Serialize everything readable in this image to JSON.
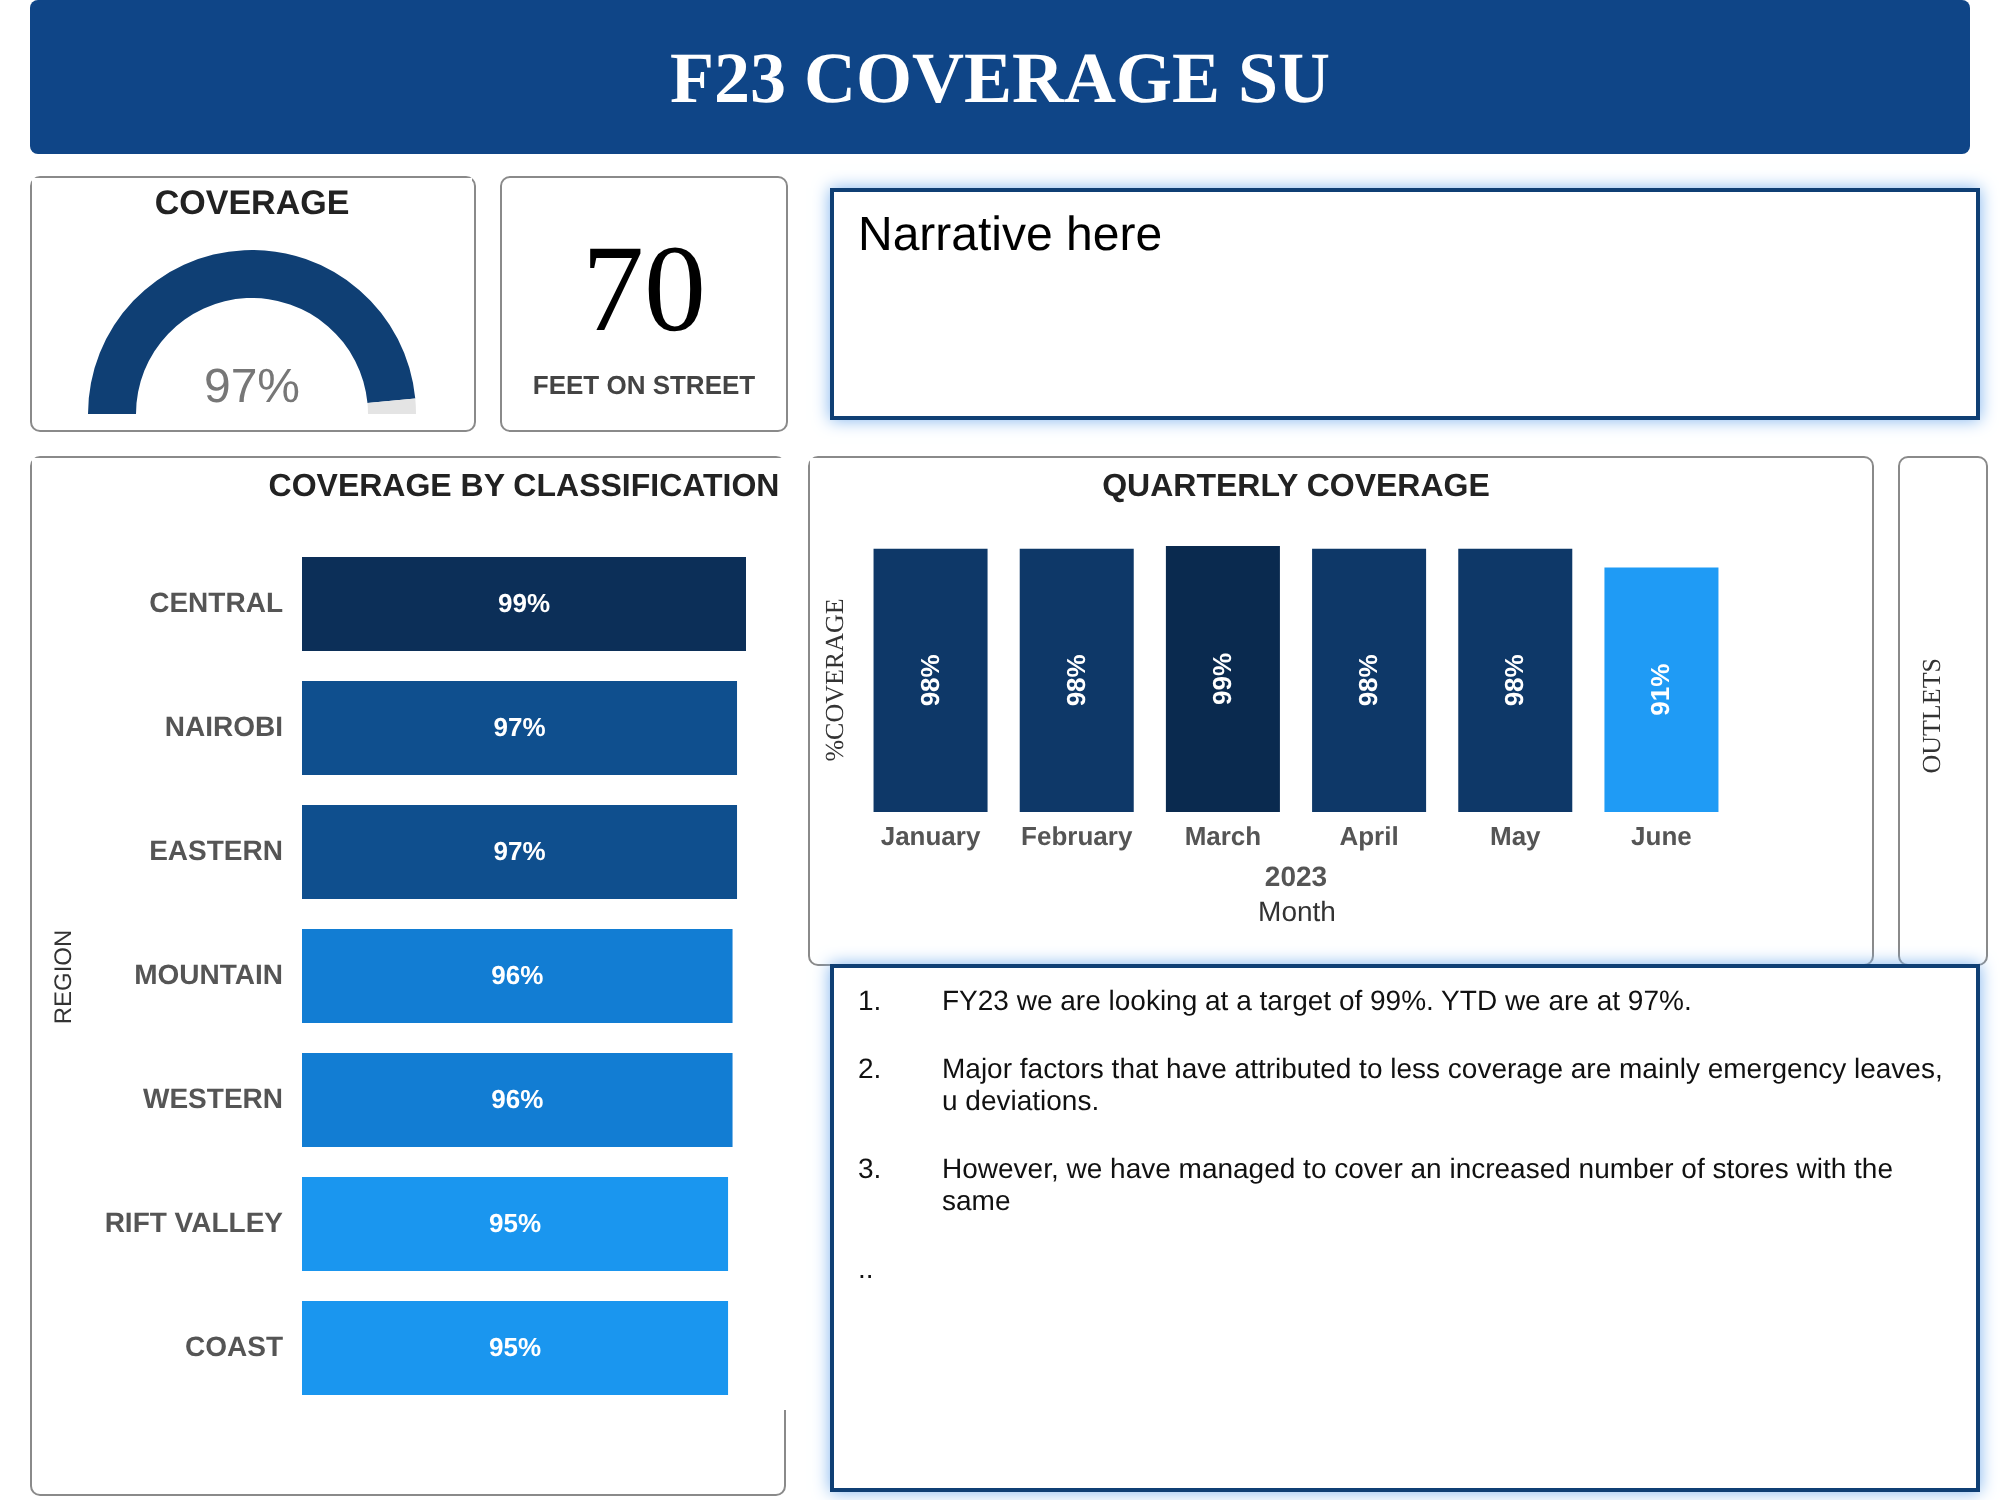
{
  "chart_data": [
    {
      "type": "other",
      "title": "F23 COVERAGE SU"
    },
    {
      "type": "donut",
      "title": "COVERAGE",
      "categories": [
        null,
        null
      ],
      "values": [
        97,
        3
      ],
      "colors": [
        "#0f3f74",
        "#e4e4e4"
      ],
      "annotations": [
        "97%"
      ]
    },
    {
      "type": "other",
      "title": "70",
      "subtitle": "FEET ON STREET"
    },
    {
      "type": "other",
      "annotations": [
        "Narrative here"
      ]
    },
    {
      "type": "bar",
      "orientation": "horizontal",
      "title": "COVERAGE BY CLASSIFICATION",
      "ylabel": "REGION",
      "categories": [
        "CENTRAL",
        "NAIROBI",
        "EASTERN",
        "MOUNTAIN",
        "WESTERN",
        "RIFT VALLEY",
        "COAST"
      ],
      "values": [
        99,
        97,
        97,
        96,
        96,
        95,
        95
      ],
      "value_labels": [
        "99%",
        "97%",
        "97%",
        "96%",
        "96%",
        "95%",
        "95%"
      ],
      "colors": [
        "#0c2f58",
        "#0f4f8e",
        "#0f4f8e",
        "#127dd3",
        "#127dd3",
        "#1a96ef",
        "#1a96ef"
      ]
    },
    {
      "type": "bar",
      "title": "QUARTERLY COVERAGE",
      "ylabel": "%COVERAGE",
      "xlabel": "Month",
      "categories": [
        "January",
        "February",
        "March",
        "April",
        "May",
        "June"
      ],
      "values": [
        98,
        98,
        99,
        98,
        98,
        91
      ],
      "value_labels": [
        "98%",
        "98%",
        "99%",
        "98%",
        "98%",
        "91%"
      ],
      "colors": [
        "#0e3868",
        "#0e3868",
        "#0a2a4f",
        "#0e3868",
        "#0e3868",
        "#1f9bf5"
      ],
      "annotations": [
        "2023"
      ]
    },
    {
      "type": "other",
      "ylabel": "OUTLETS"
    },
    {
      "type": "other",
      "annotations": [
        "1.",
        "FY23 we are looking at a target of 99%. YTD we are at 97%.",
        "2.",
        "Major factors that have attributed to less coverage are mainly emergency leaves, u deviations.",
        "3.",
        "However, we have managed to cover an increased number of stores with the same",
        ".."
      ]
    }
  ]
}
